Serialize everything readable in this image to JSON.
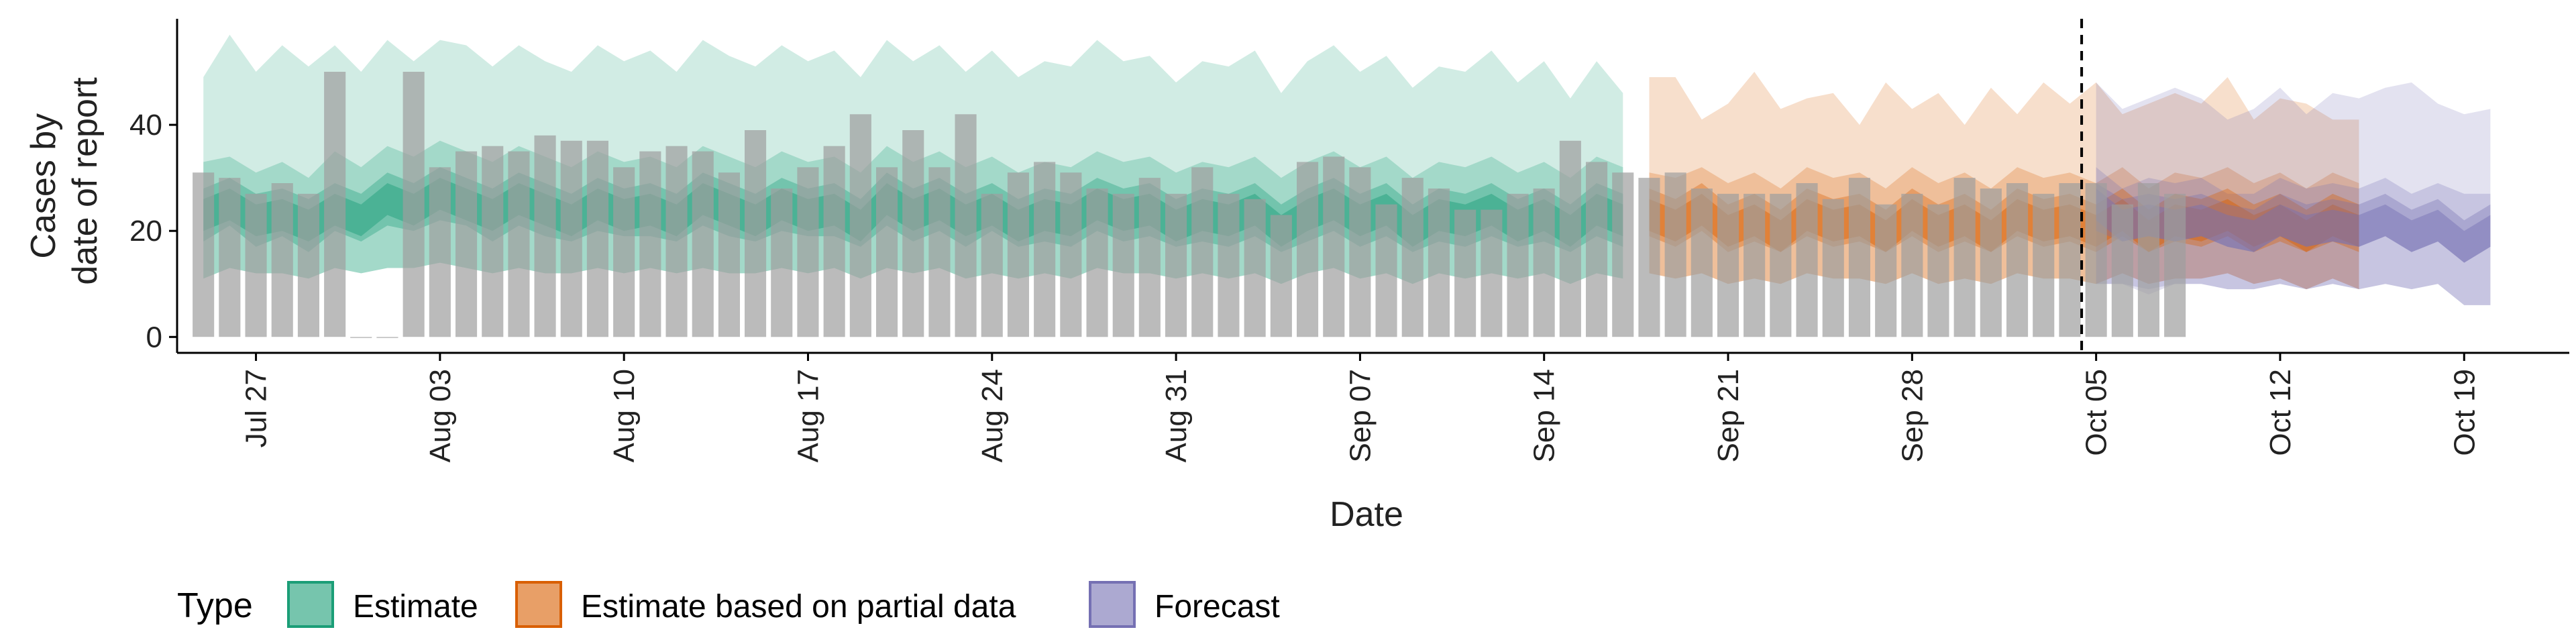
{
  "chart_data": {
    "type": "bar",
    "xlabel": "Date",
    "ylabel_lines": [
      "Cases by",
      "date of report"
    ],
    "y_ticks": [
      0,
      20,
      40
    ],
    "ylim": [
      -3,
      60
    ],
    "x_range": [
      "2021-07-24",
      "2021-10-23"
    ],
    "x_ticks": [
      {
        "date": "2021-07-27",
        "label": "Jul 27"
      },
      {
        "date": "2021-08-03",
        "label": "Aug 03"
      },
      {
        "date": "2021-08-10",
        "label": "Aug 10"
      },
      {
        "date": "2021-08-17",
        "label": "Aug 17"
      },
      {
        "date": "2021-08-24",
        "label": "Aug 24"
      },
      {
        "date": "2021-08-31",
        "label": "Aug 31"
      },
      {
        "date": "2021-09-07",
        "label": "Sep 07"
      },
      {
        "date": "2021-09-14",
        "label": "Sep 14"
      },
      {
        "date": "2021-09-21",
        "label": "Sep 21"
      },
      {
        "date": "2021-09-28",
        "label": "Sep 28"
      },
      {
        "date": "2021-10-05",
        "label": "Oct 05"
      },
      {
        "date": "2021-10-12",
        "label": "Oct 12"
      },
      {
        "date": "2021-10-19",
        "label": "Oct 19"
      }
    ],
    "vline_date": "2021-10-04",
    "grid": false,
    "legend": {
      "title": "Type",
      "position": "bottom-left",
      "items": [
        {
          "label": "Estimate",
          "fill": "#1b9e77",
          "border": "#1b9e77"
        },
        {
          "label": "Estimate based on partial data",
          "fill": "#d95f02",
          "border": "#d95f02"
        },
        {
          "label": "Forecast",
          "fill": "#7570b3",
          "border": "#7570b3"
        }
      ]
    },
    "reported_cases": {
      "color": "#9e9e9e",
      "start_date": "2021-07-25",
      "values": [
        31,
        30,
        27,
        29,
        27,
        50,
        0,
        0,
        50,
        32,
        35,
        36,
        35,
        38,
        37,
        37,
        32,
        35,
        36,
        35,
        31,
        39,
        28,
        32,
        36,
        42,
        32,
        39,
        32,
        42,
        27,
        31,
        33,
        31,
        28,
        27,
        30,
        27,
        32,
        27,
        26,
        23,
        33,
        34,
        32,
        25,
        30,
        28,
        24,
        24,
        27,
        28,
        37,
        33,
        31,
        30,
        31,
        28,
        27,
        27,
        27,
        29,
        26,
        30,
        25,
        27,
        25,
        30,
        28,
        29,
        27,
        29,
        29,
        25,
        29,
        27
      ]
    },
    "estimate_bands": [
      {
        "type": "Estimate",
        "color": "#1b9e77",
        "start_date": "2021-07-25",
        "median": [
          23,
          25,
          22,
          23,
          21,
          24,
          22,
          26,
          24,
          27,
          25,
          23,
          26,
          24,
          22,
          25,
          23,
          24,
          22,
          26,
          24,
          22,
          25,
          23,
          24,
          21,
          26,
          23,
          25,
          22,
          24,
          21,
          23,
          22,
          25,
          23,
          24,
          21,
          23,
          22,
          24,
          20,
          23,
          25,
          22,
          24,
          20,
          23,
          22,
          24,
          21,
          23,
          20,
          24,
          22
        ],
        "lower_50": [
          18,
          21,
          17,
          19,
          16,
          20,
          18,
          21,
          20,
          22,
          21,
          18,
          21,
          19,
          18,
          20,
          19,
          19,
          18,
          21,
          19,
          18,
          20,
          19,
          19,
          17,
          21,
          18,
          20,
          17,
          20,
          17,
          18,
          17,
          20,
          18,
          19,
          17,
          18,
          17,
          19,
          16,
          18,
          20,
          17,
          19,
          16,
          18,
          17,
          19,
          17,
          18,
          16,
          19,
          17
        ],
        "upper_50": [
          28,
          30,
          27,
          28,
          26,
          29,
          27,
          31,
          29,
          32,
          30,
          28,
          31,
          29,
          27,
          30,
          28,
          29,
          27,
          31,
          29,
          27,
          30,
          28,
          29,
          26,
          31,
          28,
          30,
          27,
          29,
          26,
          28,
          27,
          30,
          28,
          29,
          26,
          28,
          27,
          29,
          25,
          28,
          30,
          27,
          29,
          25,
          28,
          27,
          29,
          26,
          28,
          25,
          29,
          27
        ],
        "lower_90": [
          11,
          13,
          12,
          12,
          11,
          13,
          12,
          13,
          13,
          14,
          13,
          12,
          13,
          12,
          12,
          13,
          12,
          13,
          12,
          13,
          12,
          12,
          13,
          12,
          13,
          11,
          13,
          12,
          13,
          11,
          12,
          11,
          12,
          11,
          13,
          12,
          12,
          11,
          12,
          11,
          12,
          10,
          12,
          13,
          11,
          12,
          10,
          12,
          11,
          12,
          11,
          12,
          10,
          12,
          11
        ],
        "upper_90": [
          33,
          34,
          31,
          33,
          30,
          35,
          32,
          36,
          34,
          37,
          35,
          33,
          36,
          34,
          32,
          35,
          33,
          34,
          32,
          36,
          34,
          32,
          35,
          33,
          34,
          31,
          36,
          33,
          35,
          32,
          34,
          31,
          33,
          32,
          35,
          33,
          34,
          31,
          33,
          32,
          34,
          30,
          33,
          35,
          32,
          34,
          30,
          33,
          32,
          34,
          31,
          33,
          30,
          34,
          32
        ],
        "upper_outer": [
          49,
          57,
          50,
          55,
          51,
          55,
          50,
          56,
          52,
          56,
          55,
          51,
          55,
          52,
          50,
          55,
          52,
          54,
          50,
          56,
          53,
          51,
          55,
          52,
          54,
          49,
          56,
          52,
          55,
          50,
          54,
          49,
          52,
          51,
          56,
          52,
          53,
          48,
          52,
          51,
          54,
          46,
          52,
          55,
          50,
          53,
          47,
          51,
          50,
          54,
          48,
          52,
          45,
          52,
          46
        ],
        "lower_outer": [
          11,
          13,
          12,
          12,
          11,
          13,
          12,
          13,
          13,
          14,
          13,
          12,
          13,
          12,
          12,
          13,
          12,
          13,
          12,
          13,
          12,
          12,
          13,
          12,
          13,
          11,
          13,
          12,
          13,
          11,
          12,
          11,
          12,
          11,
          13,
          12,
          12,
          11,
          12,
          11,
          12,
          10,
          12,
          13,
          11,
          12,
          10,
          12,
          11,
          12,
          11,
          12,
          10,
          12,
          11
        ]
      },
      {
        "type": "Estimate based on partial data",
        "color": "#d95f02",
        "start_date": "2021-09-18",
        "median": [
          23,
          21,
          24,
          20,
          22,
          19,
          23,
          21,
          22,
          19,
          23,
          20,
          22,
          19,
          23,
          21,
          22,
          20,
          23,
          19,
          22,
          21,
          23,
          20,
          22,
          19,
          22,
          20
        ],
        "lower_50": [
          19,
          17,
          20,
          16,
          18,
          16,
          19,
          17,
          18,
          16,
          19,
          16,
          18,
          16,
          19,
          17,
          18,
          16,
          19,
          16,
          18,
          17,
          19,
          16,
          18,
          16,
          18,
          16
        ],
        "upper_50": [
          28,
          26,
          29,
          25,
          27,
          24,
          28,
          26,
          27,
          24,
          28,
          25,
          27,
          24,
          28,
          26,
          27,
          25,
          28,
          24,
          27,
          26,
          28,
          25,
          27,
          24,
          27,
          25
        ],
        "lower_90": [
          12,
          11,
          12,
          10,
          11,
          10,
          12,
          11,
          11,
          10,
          12,
          10,
          11,
          10,
          12,
          11,
          11,
          10,
          12,
          10,
          11,
          11,
          12,
          10,
          11,
          9,
          11,
          9
        ],
        "upper_90": [
          31,
          30,
          32,
          29,
          31,
          28,
          32,
          30,
          31,
          28,
          32,
          29,
          31,
          28,
          32,
          30,
          31,
          29,
          32,
          28,
          31,
          30,
          32,
          29,
          31,
          28,
          31,
          29
        ],
        "upper_outer": [
          49,
          49,
          41,
          44,
          50,
          43,
          45,
          46,
          40,
          48,
          43,
          46,
          40,
          47,
          42,
          48,
          44,
          48,
          42,
          44,
          46,
          44,
          49,
          41,
          45,
          44,
          41,
          41
        ],
        "lower_outer": [
          12,
          11,
          12,
          10,
          11,
          10,
          12,
          11,
          11,
          10,
          12,
          10,
          11,
          10,
          12,
          11,
          11,
          10,
          12,
          10,
          11,
          11,
          12,
          10,
          11,
          9,
          11,
          9
        ]
      },
      {
        "type": "Forecast",
        "color": "#7570b3",
        "start_date": "2021-10-05",
        "median": [
          25,
          21,
          22,
          21,
          22,
          20,
          19,
          22,
          20,
          21,
          20,
          22,
          19,
          21,
          17,
          20
        ],
        "lower_50": [
          20,
          18,
          19,
          18,
          19,
          17,
          16,
          19,
          17,
          18,
          17,
          19,
          16,
          18,
          14,
          17
        ],
        "upper_50": [
          29,
          26,
          27,
          26,
          27,
          25,
          24,
          27,
          25,
          26,
          25,
          27,
          24,
          26,
          22,
          25
        ],
        "lower_90": [
          10,
          10,
          9,
          10,
          10,
          9,
          9,
          10,
          9,
          10,
          9,
          10,
          9,
          10,
          6,
          6
        ],
        "upper_90": [
          32,
          28,
          30,
          29,
          30,
          27,
          27,
          30,
          28,
          29,
          28,
          30,
          27,
          29,
          27,
          27
        ],
        "upper_outer": [
          48,
          43,
          45,
          47,
          45,
          41,
          43,
          47,
          42,
          46,
          45,
          47,
          48,
          44,
          42,
          43
        ],
        "lower_outer": [
          10,
          10,
          8,
          10,
          10,
          9,
          9,
          10,
          9,
          10,
          9,
          10,
          9,
          10,
          6,
          6
        ]
      }
    ]
  }
}
